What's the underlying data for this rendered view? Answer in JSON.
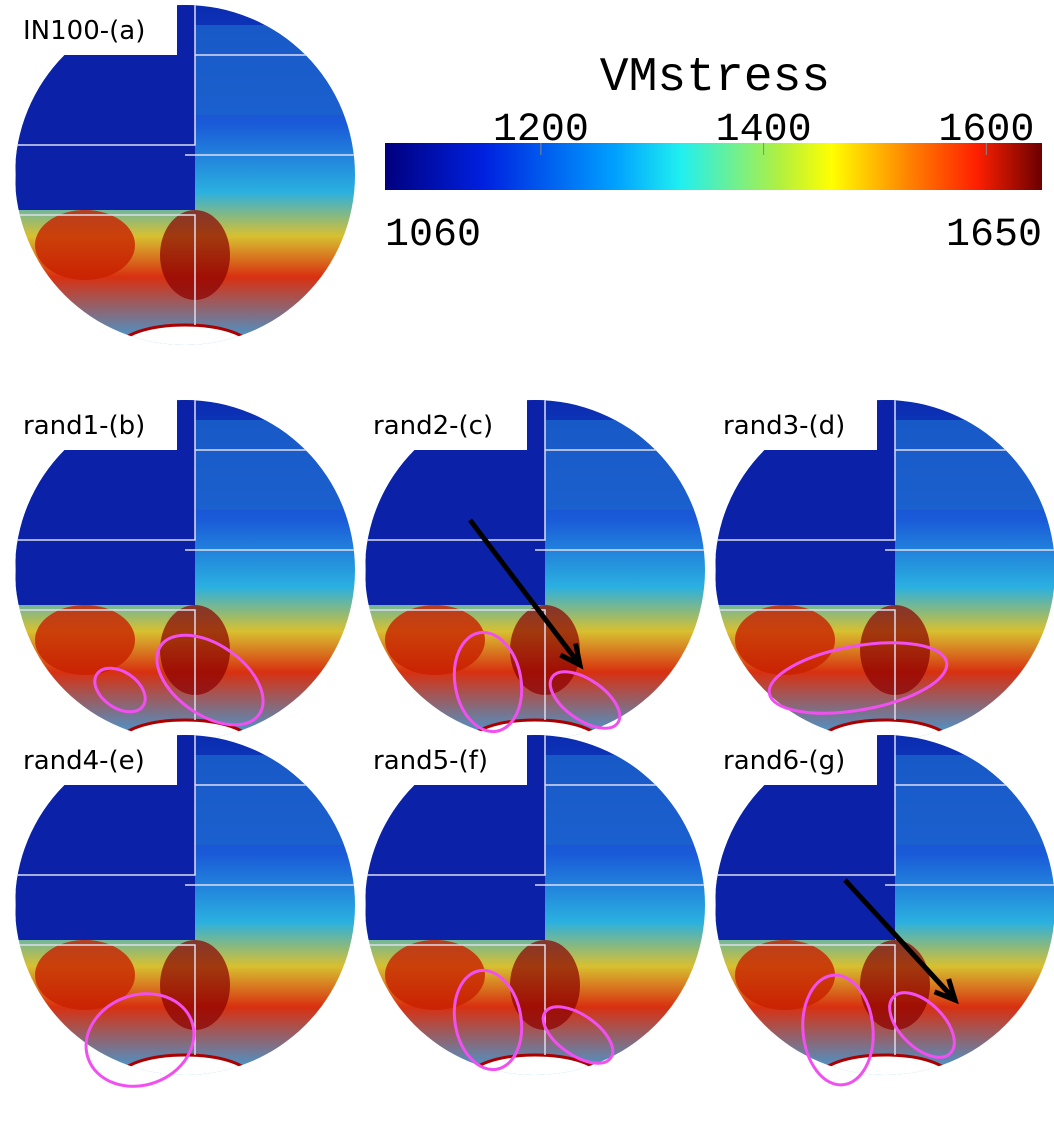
{
  "colorbar": {
    "title": "VMstress",
    "min": 1060,
    "max": 1650,
    "ticks": [
      1200,
      1400,
      1600
    ]
  },
  "panels": [
    "IN100-(a)",
    "rand1-(b)",
    "rand2-(c)",
    "rand3-(d)",
    "rand4-(e)",
    "rand5-(f)",
    "rand6-(g)"
  ]
}
